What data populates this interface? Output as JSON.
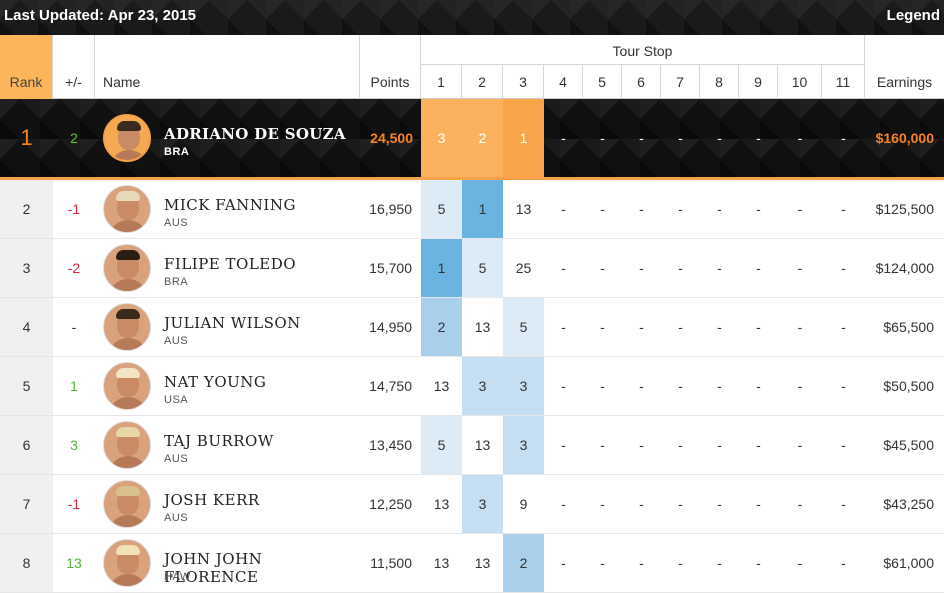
{
  "topbar": {
    "updated": "Last Updated: Apr 23, 2015",
    "legend": "Legend"
  },
  "header": {
    "rank": "Rank",
    "change": "+/-",
    "name": "Name",
    "points": "Points",
    "tour_stop": "Tour Stop",
    "stops": [
      "1",
      "2",
      "3",
      "4",
      "5",
      "6",
      "7",
      "8",
      "9",
      "10",
      "11"
    ],
    "earnings": "Earnings"
  },
  "leader": {
    "rank": "1",
    "change": "2",
    "name": "ADRIANO DE SOUZA",
    "country": "BRA",
    "points": "24,500",
    "stops": [
      "3",
      "2",
      "1",
      "-",
      "-",
      "-",
      "-",
      "-",
      "-",
      "-",
      "-"
    ],
    "earnings": "$160,000"
  },
  "rows": [
    {
      "rank": "2",
      "change": "-1",
      "dir": "down",
      "name": "MICK FANNING",
      "country": "AUS",
      "points": "16,950",
      "stops": [
        "5",
        "1",
        "13",
        "-",
        "-",
        "-",
        "-",
        "-",
        "-",
        "-",
        "-"
      ],
      "earnings": "$125,500"
    },
    {
      "rank": "3",
      "change": "-2",
      "dir": "down",
      "name": "FILIPE TOLEDO",
      "country": "BRA",
      "points": "15,700",
      "stops": [
        "1",
        "5",
        "25",
        "-",
        "-",
        "-",
        "-",
        "-",
        "-",
        "-",
        "-"
      ],
      "earnings": "$124,000"
    },
    {
      "rank": "4",
      "change": "-",
      "dir": "none",
      "name": "JULIAN WILSON",
      "country": "AUS",
      "points": "14,950",
      "stops": [
        "2",
        "13",
        "5",
        "-",
        "-",
        "-",
        "-",
        "-",
        "-",
        "-",
        "-"
      ],
      "earnings": "$65,500"
    },
    {
      "rank": "5",
      "change": "1",
      "dir": "up",
      "name": "NAT YOUNG",
      "country": "USA",
      "points": "14,750",
      "stops": [
        "13",
        "3",
        "3",
        "-",
        "-",
        "-",
        "-",
        "-",
        "-",
        "-",
        "-"
      ],
      "earnings": "$50,500"
    },
    {
      "rank": "6",
      "change": "3",
      "dir": "up",
      "name": "TAJ BURROW",
      "country": "AUS",
      "points": "13,450",
      "stops": [
        "5",
        "13",
        "3",
        "-",
        "-",
        "-",
        "-",
        "-",
        "-",
        "-",
        "-"
      ],
      "earnings": "$45,500"
    },
    {
      "rank": "7",
      "change": "-1",
      "dir": "down",
      "name": "JOSH KERR",
      "country": "AUS",
      "points": "12,250",
      "stops": [
        "13",
        "3",
        "9",
        "-",
        "-",
        "-",
        "-",
        "-",
        "-",
        "-",
        "-"
      ],
      "earnings": "$43,250"
    },
    {
      "rank": "8",
      "change": "13",
      "dir": "up",
      "name": "JOHN JOHN FLORENCE",
      "country": "HAW",
      "points": "11,500",
      "stops": [
        "13",
        "13",
        "2",
        "-",
        "-",
        "-",
        "-",
        "-",
        "-",
        "-",
        "-"
      ],
      "earnings": "$61,000"
    }
  ],
  "colors": {
    "accent": "#f58220",
    "rank_header": "#fdb55b",
    "up": "#4fb337",
    "down": "#d0243a"
  }
}
